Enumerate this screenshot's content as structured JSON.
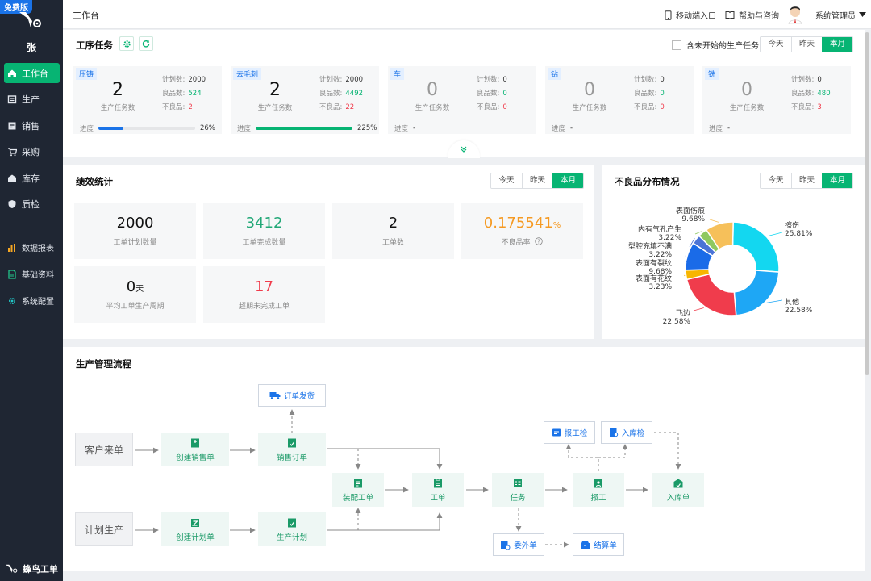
{
  "sidebar": {
    "badge": "免费版",
    "user": "张",
    "items": [
      {
        "label": "工作台",
        "icon": "home-icon",
        "active": true
      },
      {
        "label": "生产",
        "icon": "factory-icon"
      },
      {
        "label": "销售",
        "icon": "sales-icon"
      },
      {
        "label": "采购",
        "icon": "cart-icon"
      },
      {
        "label": "库存",
        "icon": "warehouse-icon"
      },
      {
        "label": "质检",
        "icon": "shield-icon"
      }
    ],
    "items2": [
      {
        "label": "数据报表",
        "icon": "chart-icon"
      },
      {
        "label": "基础资料",
        "icon": "document-icon"
      },
      {
        "label": "系统配置",
        "icon": "gear-icon"
      }
    ],
    "brand": "蜂鸟工单"
  },
  "header": {
    "title": "工作台",
    "mobile": "移动端入口",
    "help": "帮助与咨询",
    "user": "系统管理员"
  },
  "tasks": {
    "title": "工序任务",
    "checkbox_label": "含未开始的生产任务",
    "ranges": [
      "今天",
      "昨天",
      "本月"
    ],
    "labels": {
      "plan": "计划数:",
      "good": "良品数:",
      "bad": "不良品:",
      "count": "生产任务数",
      "progress": "进度"
    },
    "cards": [
      {
        "name": "压铸",
        "count": "2",
        "plan": "2000",
        "good": "524",
        "bad": "2",
        "progress": 0.26,
        "progress_text": "26%",
        "bar_color": "#1a73e8"
      },
      {
        "name": "去毛刺",
        "count": "2",
        "plan": "2000",
        "good": "4492",
        "bad": "22",
        "progress": 1.0,
        "progress_text": "225%",
        "bar_color": "#07b473"
      },
      {
        "name": "车",
        "count": "0",
        "plan": "0",
        "good": "0",
        "bad": "0",
        "progress_text": "-"
      },
      {
        "name": "钻",
        "count": "0",
        "plan": "0",
        "good": "0",
        "bad": "0",
        "progress_text": "-"
      },
      {
        "name": "铣",
        "count": "0",
        "plan": "0",
        "good": "480",
        "bad": "3",
        "progress_text": "-"
      }
    ]
  },
  "perf": {
    "title": "绩效统计",
    "ranges": [
      "今天",
      "昨天",
      "本月"
    ],
    "stats": [
      {
        "value": "2000",
        "label": "工单计划数量"
      },
      {
        "value": "3412",
        "label": "工单完成数量"
      },
      {
        "value": "2",
        "label": "工单数"
      },
      {
        "value": "0.175541",
        "unit": "%",
        "label": "不良品率"
      },
      {
        "value": "0",
        "unit": "天",
        "label": "平均工单生产周期"
      },
      {
        "value": "17",
        "label": "超期未完成工单"
      }
    ]
  },
  "defects": {
    "title": "不良品分布情况",
    "ranges": [
      "今天",
      "昨天",
      "本月"
    ],
    "chart_data": {
      "type": "pie",
      "series": [
        {
          "name": "擦伤",
          "value": 25.81,
          "label": "25.81%",
          "color": "#13d7f0"
        },
        {
          "name": "其他",
          "value": 22.58,
          "label": "22.58%",
          "color": "#1ea7f5"
        },
        {
          "name": "飞边",
          "value": 22.58,
          "label": "22.58%",
          "color": "#f03c4c"
        },
        {
          "name": "表面有花纹",
          "value": 3.23,
          "label": "3.23%",
          "color": "#f7b500"
        },
        {
          "name": "表面有裂纹",
          "value": 9.68,
          "label": "9.68%",
          "color": "#1a6be8"
        },
        {
          "name": "型腔充填不满",
          "value": 3.22,
          "label": "3.22%",
          "color": "#4a73d6"
        },
        {
          "name": "内有气孔产生",
          "value": 3.22,
          "label": "3.22%",
          "color": "#8fc860"
        },
        {
          "name": "表面伤痕",
          "value": 9.68,
          "label": "9.68%",
          "color": "#f6c05a"
        }
      ]
    }
  },
  "flow": {
    "title": "生产管理流程",
    "nodes": {
      "customer": "客户来单",
      "plan": "计划生产",
      "create_sales": "创建销售单",
      "sales_order": "销售订单",
      "ship": "订单发货",
      "create_plan": "创建计划单",
      "prod_plan": "生产计划",
      "assembly": "装配工单",
      "workorder": "工单",
      "task": "任务",
      "report": "报工",
      "inbound": "入库单",
      "report_check": "报工检",
      "inbound_check": "入库检",
      "outsource": "委外单",
      "settle": "结算单"
    }
  }
}
